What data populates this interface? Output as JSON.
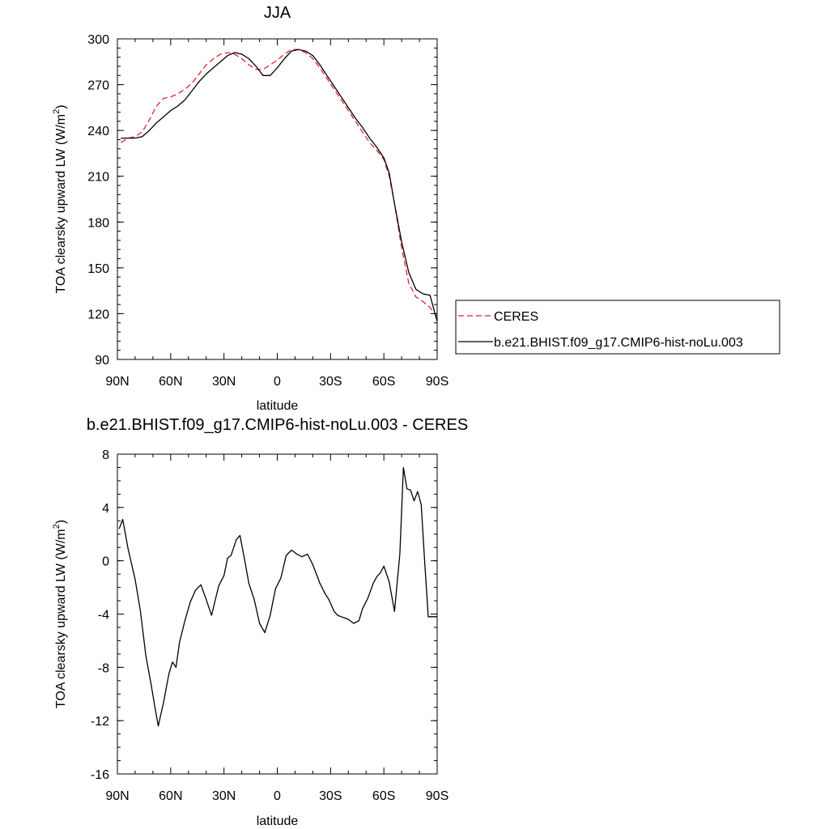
{
  "chart_data": [
    {
      "type": "line",
      "title": "JJA",
      "xlabel": "latitude",
      "ylabel": "TOA clearsky upward LW (W/m",
      "ylabel_superscript": "2",
      "ylabel_close": ")",
      "xlim": [
        90,
        -90
      ],
      "ylim": [
        90,
        300
      ],
      "x_ticks": [
        90,
        60,
        30,
        0,
        -30,
        -60,
        -90
      ],
      "x_tick_labels": [
        "90N",
        "60N",
        "30N",
        "0",
        "30S",
        "60S",
        "90S"
      ],
      "y_ticks": [
        90,
        120,
        150,
        180,
        210,
        240,
        270,
        300
      ],
      "y_tick_labels": [
        "90",
        "120",
        "150",
        "180",
        "210",
        "240",
        "270",
        "300"
      ],
      "grid": false,
      "legend_position": "right",
      "series": [
        {
          "name": "CERES",
          "color": "#e8202a",
          "dash": "dashed",
          "x": [
            88,
            84,
            80,
            76,
            72,
            68,
            64,
            60,
            56,
            52,
            48,
            44,
            40,
            36,
            32,
            28,
            24,
            20,
            16,
            12,
            8,
            4,
            0,
            -4,
            -8,
            -12,
            -16,
            -20,
            -24,
            -28,
            -32,
            -36,
            -40,
            -44,
            -48,
            -52,
            -56,
            -60,
            -63,
            -66,
            -70,
            -74,
            -78,
            -82,
            -86,
            -90
          ],
          "y": [
            232,
            235,
            236,
            239,
            247,
            256,
            261,
            262,
            264,
            267,
            271,
            277,
            283,
            287,
            290,
            291,
            290,
            287,
            283,
            280,
            280,
            283,
            286,
            290,
            293,
            293,
            291,
            287,
            281,
            274,
            267,
            260,
            253,
            246,
            239,
            232,
            227,
            221,
            210,
            192,
            163,
            140,
            131,
            128,
            124,
            118
          ]
        },
        {
          "name": "b.e21.BHIST.f09_g17.CMIP6-hist-noLu.003",
          "color": "#000000",
          "dash": "solid",
          "x": [
            88,
            84,
            80,
            76,
            72,
            68,
            64,
            60,
            56,
            52,
            48,
            44,
            40,
            36,
            32,
            28,
            24,
            20,
            16,
            12,
            8,
            4,
            0,
            -4,
            -8,
            -12,
            -16,
            -20,
            -24,
            -28,
            -32,
            -36,
            -40,
            -44,
            -48,
            -52,
            -56,
            -60,
            -63,
            -66,
            -70,
            -74,
            -78,
            -82,
            -86,
            -90
          ],
          "y": [
            235,
            235,
            235,
            236,
            240,
            245,
            249,
            253,
            256,
            260,
            266,
            272,
            277,
            281,
            285,
            289,
            291,
            290,
            287,
            282,
            276,
            276,
            281,
            287,
            292,
            293,
            292,
            289,
            283,
            276,
            269,
            262,
            255,
            248,
            242,
            235,
            229,
            222,
            212,
            192,
            167,
            147,
            136,
            133,
            132,
            115
          ]
        }
      ]
    },
    {
      "type": "line",
      "title": "b.e21.BHIST.f09_g17.CMIP6-hist-noLu.003 - CERES",
      "xlabel": "latitude",
      "ylabel": "TOA clearsky upward LW (W/m",
      "ylabel_superscript": "2",
      "ylabel_close": ")",
      "xlim": [
        90,
        -90
      ],
      "ylim": [
        -16,
        8
      ],
      "x_ticks": [
        90,
        60,
        30,
        0,
        -30,
        -60,
        -90
      ],
      "x_tick_labels": [
        "90N",
        "60N",
        "30N",
        "0",
        "30S",
        "60S",
        "90S"
      ],
      "y_ticks": [
        -16,
        -12,
        -8,
        -4,
        0,
        4,
        8
      ],
      "y_tick_labels": [
        "-16",
        "-12",
        "-8",
        "-4",
        "0",
        "4",
        "8"
      ],
      "grid": false,
      "series": [
        {
          "color": "#000000",
          "dash": "solid",
          "x": [
            89,
            87,
            84,
            80,
            77,
            74,
            71,
            69,
            67,
            64,
            61,
            59,
            57,
            55,
            52,
            49,
            46,
            43,
            40,
            37,
            33,
            30,
            28,
            26,
            23,
            21,
            18,
            16,
            13,
            10,
            7,
            4,
            1,
            -2,
            -5,
            -8,
            -11,
            -14,
            -17,
            -20,
            -24,
            -27,
            -29,
            -32,
            -34,
            -36,
            -38,
            -40,
            -43,
            -46,
            -48,
            -51,
            -54,
            -56,
            -58,
            -60,
            -63,
            -66,
            -69,
            -71,
            -73,
            -75,
            -77,
            -79,
            -81,
            -83,
            -85,
            -88,
            -90
          ],
          "y": [
            2.4,
            3.1,
            0.9,
            -1.4,
            -3.8,
            -7.1,
            -9.3,
            -10.9,
            -12.4,
            -10.6,
            -8.5,
            -7.6,
            -8.0,
            -6.1,
            -4.5,
            -3.1,
            -2.2,
            -1.8,
            -2.9,
            -4.1,
            -1.9,
            -1.1,
            0.2,
            0.4,
            1.6,
            1.9,
            -0.2,
            -1.7,
            -2.9,
            -4.7,
            -5.4,
            -4.1,
            -2.1,
            -1.3,
            0.4,
            0.8,
            0.5,
            0.3,
            0.5,
            -0.3,
            -1.7,
            -2.5,
            -2.9,
            -3.8,
            -4.1,
            -4.2,
            -4.3,
            -4.4,
            -4.7,
            -4.5,
            -3.6,
            -2.8,
            -1.7,
            -1.2,
            -0.9,
            -0.4,
            -1.6,
            -3.8,
            0.5,
            7.0,
            5.4,
            5.3,
            4.5,
            5.2,
            4.2,
            -0.1,
            -4.2,
            -4.2,
            -4.2
          ]
        }
      ]
    }
  ]
}
